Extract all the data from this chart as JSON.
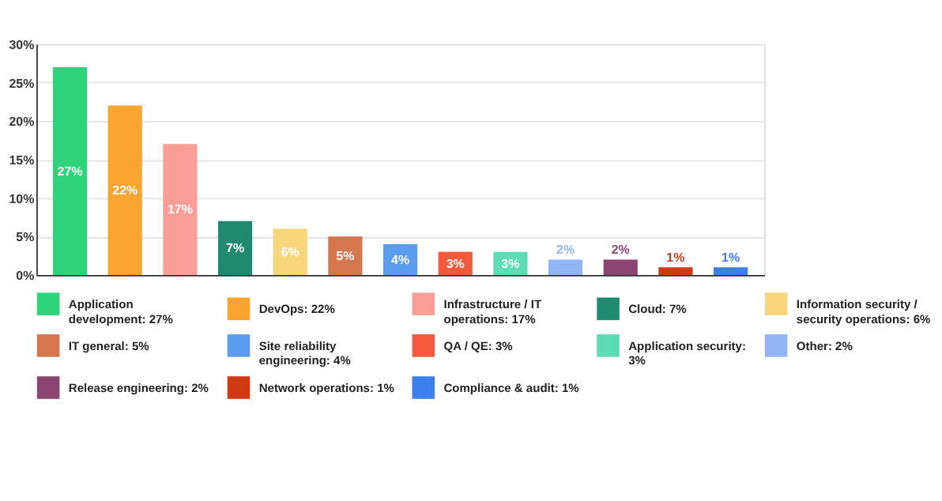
{
  "chart_data": {
    "type": "bar",
    "categories": [
      null,
      null,
      null,
      null,
      null,
      null,
      null,
      null,
      null,
      null,
      null,
      null,
      null
    ],
    "series": [
      {
        "name": "Application development: 27%",
        "color": "#2ed47a",
        "values": [
          27,
          null,
          null,
          null,
          null,
          null,
          null,
          null,
          null,
          null,
          null,
          null,
          null
        ],
        "value_labels": [
          "27%",
          null,
          null,
          null,
          null,
          null,
          null,
          null,
          null,
          null,
          null,
          null,
          null
        ]
      },
      {
        "name": "DevOps: 22%",
        "color": "#f9a52f",
        "values": [
          null,
          22,
          null,
          null,
          null,
          null,
          null,
          null,
          null,
          null,
          null,
          null,
          null
        ],
        "value_labels": [
          null,
          "22%",
          null,
          null,
          null,
          null,
          null,
          null,
          null,
          null,
          null,
          null,
          null
        ]
      },
      {
        "name": "Infrastructure / IT operations: 17%",
        "color": "#fb9e98",
        "values": [
          null,
          null,
          17,
          null,
          null,
          null,
          null,
          null,
          null,
          null,
          null,
          null,
          null
        ],
        "value_labels": [
          null,
          null,
          "17%",
          null,
          null,
          null,
          null,
          null,
          null,
          null,
          null,
          null,
          null
        ]
      },
      {
        "name": "Cloud: 7%",
        "color": "#1f8a70",
        "values": [
          null,
          null,
          null,
          7,
          null,
          null,
          null,
          null,
          null,
          null,
          null,
          null,
          null
        ],
        "value_labels": [
          null,
          null,
          null,
          "7%",
          null,
          null,
          null,
          null,
          null,
          null,
          null,
          null,
          null
        ]
      },
      {
        "name": "Information security / security operations: 6%",
        "color": "#f8d67c",
        "values": [
          null,
          null,
          null,
          null,
          6,
          null,
          null,
          null,
          null,
          null,
          null,
          null,
          null
        ],
        "value_labels": [
          null,
          null,
          null,
          null,
          "6%",
          null,
          null,
          null,
          null,
          null,
          null,
          null,
          null
        ]
      },
      {
        "name": "IT general: 5%",
        "color": "#d4774f",
        "values": [
          null,
          null,
          null,
          null,
          null,
          5,
          null,
          null,
          null,
          null,
          null,
          null,
          null
        ],
        "value_labels": [
          null,
          null,
          null,
          null,
          null,
          "5%",
          null,
          null,
          null,
          null,
          null,
          null,
          null
        ]
      },
      {
        "name": "Site reliability engineering: 4%",
        "color": "#5a9ced",
        "values": [
          null,
          null,
          null,
          null,
          null,
          null,
          4,
          null,
          null,
          null,
          null,
          null,
          null
        ],
        "value_labels": [
          null,
          null,
          null,
          null,
          null,
          null,
          "4%",
          null,
          null,
          null,
          null,
          null,
          null
        ]
      },
      {
        "name": "QA / QE: 3%",
        "color": "#f5593d",
        "values": [
          null,
          null,
          null,
          null,
          null,
          null,
          null,
          3,
          null,
          null,
          null,
          null,
          null
        ],
        "value_labels": [
          null,
          null,
          null,
          null,
          null,
          null,
          null,
          "3%",
          null,
          null,
          null,
          null,
          null
        ]
      },
      {
        "name": "Application security: 3%",
        "color": "#5edcb4",
        "values": [
          null,
          null,
          null,
          null,
          null,
          null,
          null,
          null,
          3,
          null,
          null,
          null,
          null
        ],
        "value_labels": [
          null,
          null,
          null,
          null,
          null,
          null,
          null,
          null,
          "3%",
          null,
          null,
          null,
          null
        ]
      },
      {
        "name": "Other: 2%",
        "color": "#91b5f7",
        "values": [
          null,
          null,
          null,
          null,
          null,
          null,
          null,
          null,
          null,
          2,
          null,
          null,
          null
        ],
        "value_labels": [
          null,
          null,
          null,
          null,
          null,
          null,
          null,
          null,
          null,
          "2%",
          null,
          null,
          null
        ]
      },
      {
        "name": "Release engineering: 2%",
        "color": "#8a4670",
        "values": [
          null,
          null,
          null,
          null,
          null,
          null,
          null,
          null,
          null,
          null,
          2,
          null,
          null
        ],
        "value_labels": [
          null,
          null,
          null,
          null,
          null,
          null,
          null,
          null,
          null,
          null,
          "2%",
          null,
          null
        ]
      },
      {
        "name": "Network operations: 1%",
        "color": "#cf3a14",
        "values": [
          null,
          null,
          null,
          null,
          null,
          null,
          null,
          null,
          null,
          null,
          null,
          1,
          null
        ],
        "value_labels": [
          null,
          null,
          null,
          null,
          null,
          null,
          null,
          null,
          null,
          null,
          null,
          "1%",
          null
        ]
      },
      {
        "name": "Compliance & audit: 1%",
        "color": "#3d80eb",
        "values": [
          null,
          null,
          null,
          null,
          null,
          null,
          null,
          null,
          null,
          null,
          null,
          null,
          1
        ],
        "value_labels": [
          null,
          null,
          null,
          null,
          null,
          null,
          null,
          null,
          null,
          null,
          null,
          null,
          "1%"
        ]
      }
    ],
    "ylim": [
      0,
      30
    ],
    "yticks": [
      {
        "value": 0,
        "label": "0%"
      },
      {
        "value": 5,
        "label": "5%"
      },
      {
        "value": 10,
        "label": "10%"
      },
      {
        "value": 15,
        "label": "15%"
      },
      {
        "value": 20,
        "label": "20%"
      },
      {
        "value": 25,
        "label": "25%"
      },
      {
        "value": 30,
        "label": "30%"
      }
    ],
    "grid": "y",
    "legend": "bottom",
    "tick_labels": "y"
  }
}
